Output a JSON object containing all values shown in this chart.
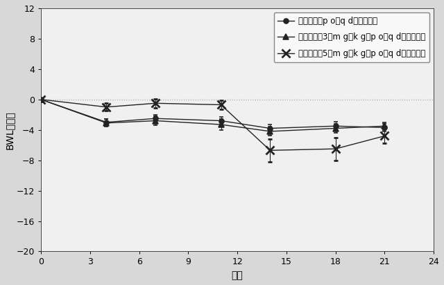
{
  "x_days": [
    0,
    4,
    7,
    11,
    14,
    18,
    21
  ],
  "series": [
    {
      "label": "ビヒクル、p o、q d、２１日間",
      "y": [
        0,
        -3.0,
        -2.5,
        -2.8,
        -3.8,
        -3.5,
        -3.7
      ],
      "yerr": [
        0.0,
        0.4,
        0.5,
        0.5,
        0.5,
        0.6,
        0.5
      ],
      "marker": "o",
      "color": "#222222",
      "linestyle": "-"
    },
    {
      "label": "実施例１、3０m g／k g、p o、q d、２１日間",
      "y": [
        0,
        -3.1,
        -2.8,
        -3.3,
        -4.2,
        -3.8,
        -3.5
      ],
      "yerr": [
        0.0,
        0.5,
        0.6,
        0.7,
        0.6,
        0.6,
        0.5
      ],
      "marker": "^",
      "color": "#222222",
      "linestyle": "-"
    },
    {
      "label": "実施例１、5０m g／k g、p o、q d、２１日間",
      "y": [
        0,
        -1.0,
        -0.5,
        -0.7,
        -6.7,
        -6.5,
        -4.8
      ],
      "yerr": [
        0.0,
        0.5,
        0.6,
        0.6,
        1.5,
        1.5,
        1.0
      ],
      "marker": "x",
      "color": "#222222",
      "linestyle": "-"
    }
  ],
  "xlabel": "日数",
  "ylabel": "BWL（％）",
  "xlim": [
    0,
    24
  ],
  "ylim": [
    -20,
    12
  ],
  "xticks": [
    0,
    3,
    6,
    9,
    12,
    15,
    18,
    21,
    24
  ],
  "yticks": [
    12,
    8,
    4,
    0,
    -4,
    -8,
    -12,
    -16,
    -20
  ],
  "hline_y": 0,
  "background_color": "#d8d8d8",
  "plot_bg_color": "#f0f0f0"
}
